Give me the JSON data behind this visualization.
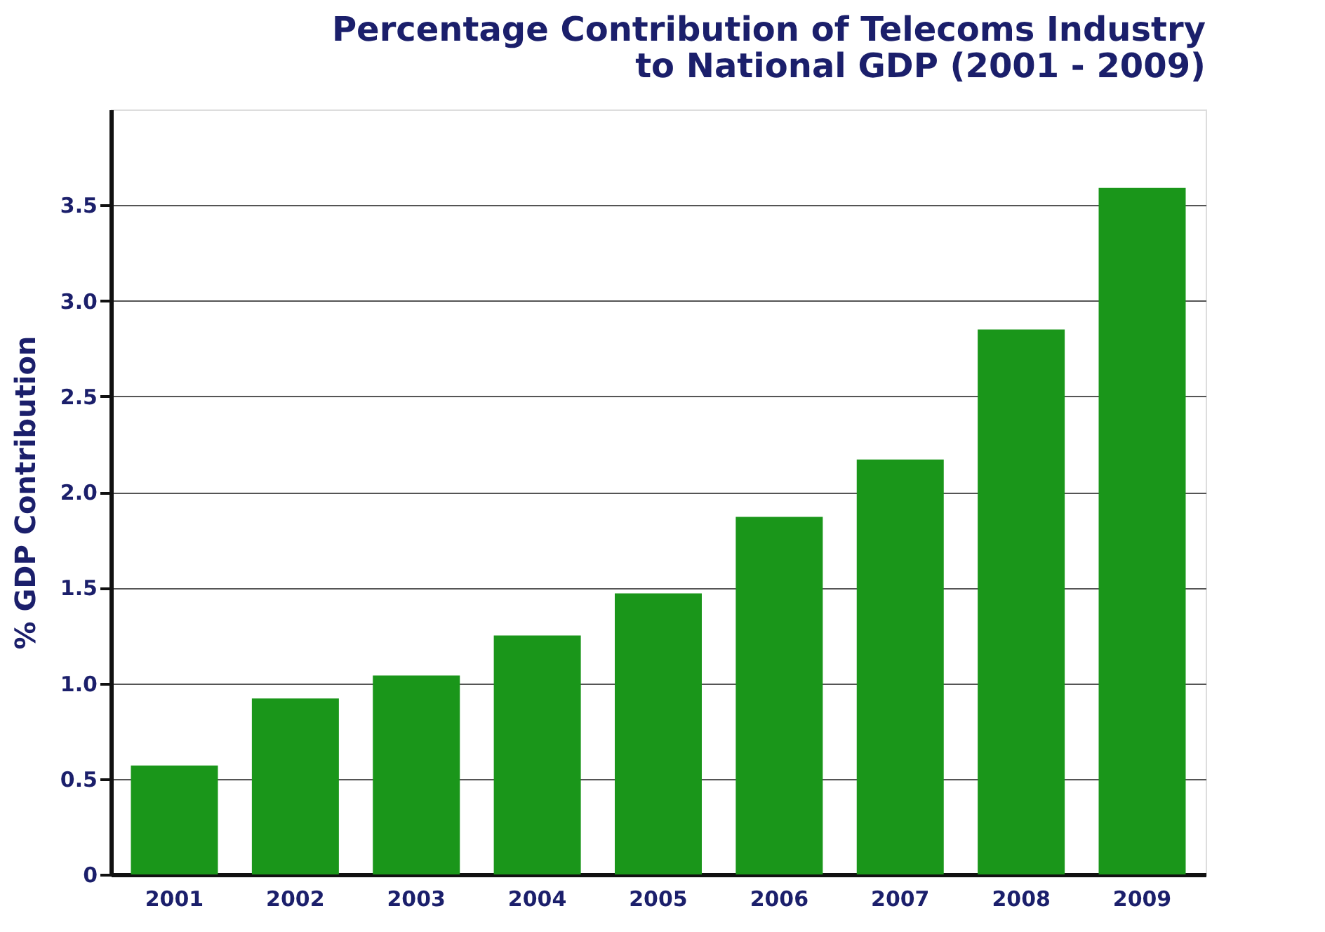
{
  "chart_data": {
    "type": "bar",
    "title": "Percentage Contribution of Telecoms Industry\nto National GDP (2001 - 2009)",
    "ylabel": "% GDP Contribution",
    "categories": [
      "2001",
      "2002",
      "2003",
      "2004",
      "2005",
      "2006",
      "2007",
      "2008",
      "2009"
    ],
    "values": [
      0.57,
      0.92,
      1.04,
      1.25,
      1.47,
      1.87,
      2.17,
      2.85,
      3.59
    ],
    "color": "#1a961a",
    "ylim": [
      0,
      4
    ],
    "yticks": [
      0,
      {
        "value": 0.5,
        "label": "0.5"
      },
      {
        "value": 1,
        "label": "1.0"
      },
      {
        "value": 1.5,
        "label": "1.5"
      },
      {
        "value": 2,
        "label": "2.0"
      },
      {
        "value": 2.5,
        "label": "2.5"
      },
      {
        "value": 3,
        "label": "3.0"
      },
      {
        "value": 3.5,
        "label": "3.5"
      }
    ],
    "grid": "y"
  }
}
